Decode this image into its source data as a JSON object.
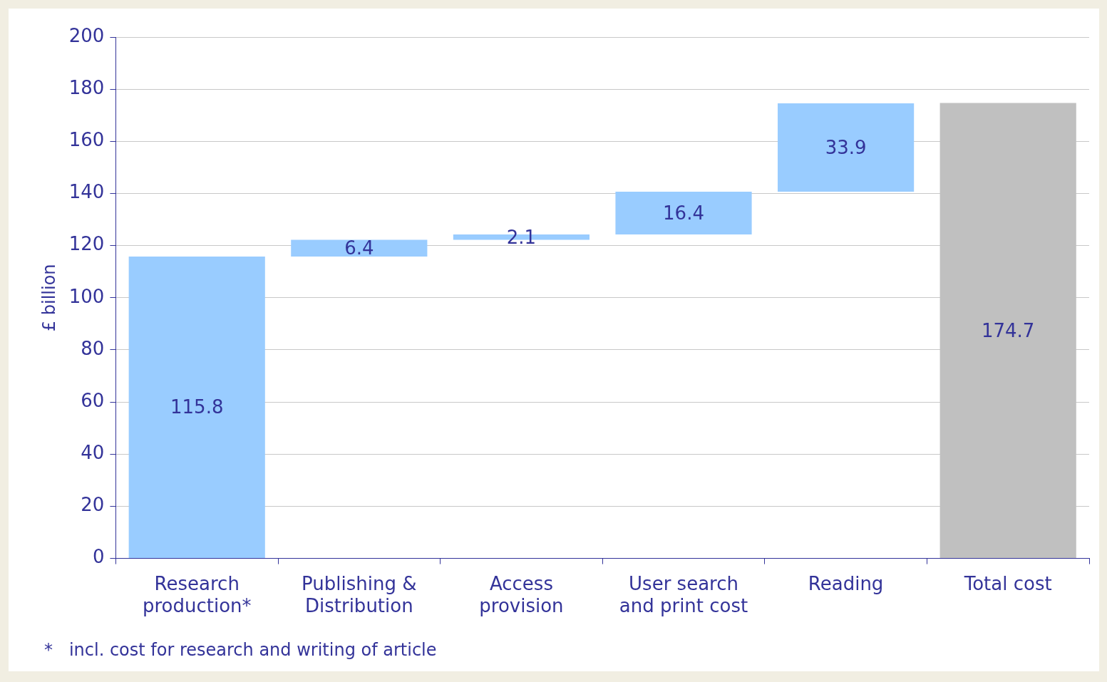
{
  "chart_data": {
    "type": "bar",
    "ylabel": "£ billion",
    "categories": [
      "Research production*",
      "Publishing & Distribution",
      "Access provision",
      "User search and print cost",
      "Reading",
      "Total cost"
    ],
    "values": [
      115.8,
      6.4,
      2.1,
      16.4,
      33.9,
      174.7
    ],
    "base": [
      0,
      115.8,
      122.2,
      124.3,
      140.7,
      0
    ],
    "colors": [
      "#99ccff",
      "#99ccff",
      "#99ccff",
      "#99ccff",
      "#99ccff",
      "#c0c0c0"
    ],
    "ylim": [
      0,
      200
    ],
    "yticks": [
      0,
      20,
      40,
      60,
      80,
      100,
      120,
      140,
      160,
      180,
      200
    ],
    "grid": "y",
    "data_labels": true,
    "annotations": [
      "*   incl. cost for research and writing of article"
    ]
  }
}
